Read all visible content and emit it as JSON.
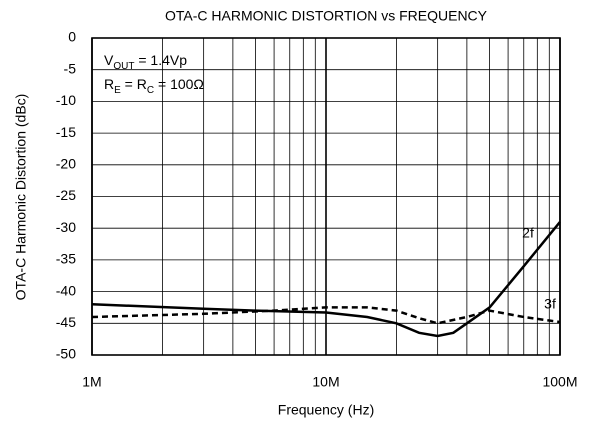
{
  "chart_data": {
    "type": "line",
    "title": "OTA-C HARMONIC DISTORTION vs FREQUENCY",
    "xlabel": "Frequency (Hz)",
    "ylabel": "OTA-C Harmonic Distortion (dBc)",
    "xscale": "log",
    "xlim": [
      1000000,
      100000000
    ],
    "xticks": [
      {
        "value": 1000000,
        "label": "1M"
      },
      {
        "value": 10000000,
        "label": "10M"
      },
      {
        "value": 100000000,
        "label": "100M"
      }
    ],
    "xminorticks": [
      2000000,
      3000000,
      4000000,
      5000000,
      6000000,
      7000000,
      8000000,
      9000000,
      20000000,
      30000000,
      40000000,
      50000000,
      60000000,
      70000000,
      80000000,
      90000000
    ],
    "ylim": [
      -50,
      0
    ],
    "yticks": [
      0,
      -5,
      -10,
      -15,
      -20,
      -25,
      -30,
      -35,
      -40,
      -45,
      -50
    ],
    "grid": true,
    "annotations": [
      [
        "V",
        "OUT",
        " = 1.4Vp"
      ],
      [
        "R",
        "E",
        " = R",
        "C",
        " = 100Ω"
      ]
    ],
    "series": [
      {
        "name": "2f",
        "color": "#000000",
        "style": "solid",
        "x": [
          1000000,
          3000000,
          5000000,
          10000000,
          15000000,
          20000000,
          25000000,
          30000000,
          35000000,
          40000000,
          50000000,
          70000000,
          100000000
        ],
        "values": [
          -42,
          -42.7,
          -43,
          -43.3,
          -44,
          -45,
          -46.5,
          -47,
          -46.5,
          -45,
          -42.5,
          -36,
          -29
        ]
      },
      {
        "name": "3f",
        "color": "#000000",
        "style": "dashed",
        "x": [
          1000000,
          3000000,
          6000000,
          10000000,
          15000000,
          20000000,
          25000000,
          30000000,
          40000000,
          50000000,
          70000000,
          100000000
        ],
        "values": [
          -44,
          -43.5,
          -43,
          -42.5,
          -42.5,
          -43,
          -44.2,
          -45,
          -44,
          -43,
          -44,
          -44.8
        ]
      }
    ]
  }
}
